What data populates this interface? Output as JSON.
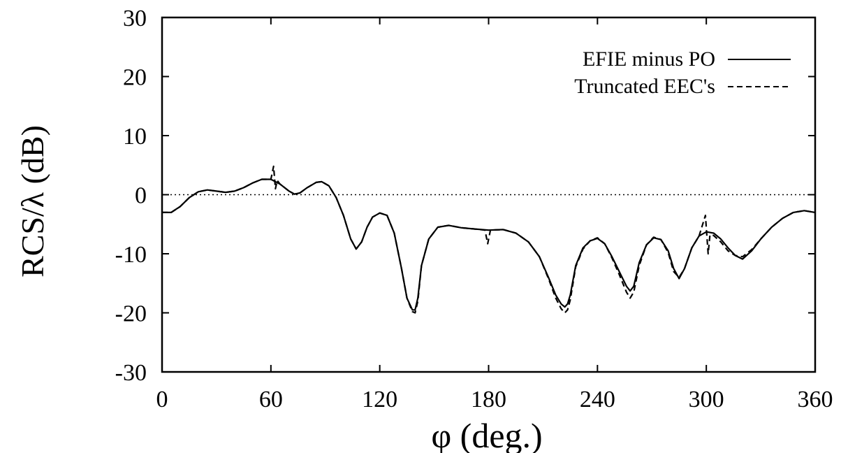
{
  "chart_data": {
    "type": "line",
    "xlabel": "φ (deg.)",
    "ylabel": "RCS/λ (dB)",
    "xlim": [
      0,
      360
    ],
    "ylim": [
      -30,
      30
    ],
    "xticks": [
      0,
      60,
      120,
      180,
      240,
      300,
      360
    ],
    "yticks": [
      30,
      20,
      10,
      0,
      -10,
      -20,
      -30
    ],
    "grid": false,
    "legend_position": "top-right",
    "reference_line": {
      "y": 0,
      "style": "dotted"
    },
    "series": [
      {
        "name": "EFIE minus PO",
        "style": "solid",
        "x": [
          0,
          5,
          10,
          15,
          20,
          25,
          30,
          35,
          40,
          45,
          50,
          55,
          60,
          65,
          70,
          73,
          76,
          80,
          85,
          88,
          92,
          96,
          100,
          104,
          107,
          110,
          113,
          116,
          120,
          124,
          128,
          132,
          135,
          138,
          139.5,
          141,
          143,
          147,
          152,
          158,
          165,
          172,
          180,
          188,
          195,
          202,
          208,
          213,
          217,
          220,
          222,
          223.5,
          225,
          228,
          232,
          236,
          240,
          244,
          248,
          252,
          256,
          258,
          260,
          263,
          267,
          271,
          275,
          279,
          282,
          285,
          288,
          292,
          296,
          300,
          304,
          308,
          312,
          316,
          320,
          325,
          330,
          336,
          342,
          348,
          354,
          360
        ],
        "y": [
          -3.0,
          -3.0,
          -2.0,
          -0.5,
          0.5,
          0.8,
          0.6,
          0.4,
          0.6,
          1.2,
          2.0,
          2.6,
          2.6,
          1.8,
          0.6,
          0.1,
          0.3,
          1.2,
          2.1,
          2.2,
          1.5,
          -0.5,
          -3.5,
          -7.5,
          -9.2,
          -8.0,
          -5.5,
          -3.8,
          -3.1,
          -3.5,
          -6.5,
          -12.5,
          -17.5,
          -19.5,
          -19.5,
          -17.5,
          -12.0,
          -7.5,
          -5.5,
          -5.2,
          -5.6,
          -5.8,
          -6.0,
          -5.9,
          -6.5,
          -8.0,
          -10.5,
          -14.0,
          -17.0,
          -18.5,
          -19.0,
          -18.5,
          -17.0,
          -12.0,
          -9.0,
          -7.8,
          -7.4,
          -8.3,
          -10.5,
          -13.0,
          -15.5,
          -16.3,
          -15.5,
          -11.5,
          -8.5,
          -7.3,
          -7.6,
          -9.5,
          -12.5,
          -14.2,
          -12.5,
          -9.0,
          -7.0,
          -6.3,
          -6.5,
          -7.5,
          -9.0,
          -10.3,
          -10.9,
          -9.5,
          -7.5,
          -5.5,
          -4.0,
          -3.0,
          -2.7,
          -3.0
        ]
      },
      {
        "name": "Truncated EEC's",
        "style": "dashed",
        "x": [
          0,
          5,
          10,
          15,
          20,
          25,
          30,
          35,
          40,
          45,
          50,
          55,
          60,
          61.5,
          62.5,
          63.5,
          65,
          70,
          73,
          76,
          80,
          85,
          88,
          92,
          96,
          100,
          104,
          107,
          110,
          113,
          116,
          120,
          124,
          128,
          132,
          135,
          138,
          139.5,
          141,
          143,
          147,
          152,
          158,
          165,
          172,
          178,
          179.5,
          181,
          188,
          195,
          202,
          208,
          213,
          217,
          220,
          222,
          223.5,
          225,
          228,
          232,
          236,
          240,
          244,
          248,
          252,
          256,
          258,
          260,
          263,
          267,
          271,
          275,
          279,
          282,
          285,
          288,
          292,
          296,
          299.5,
          301,
          302,
          303,
          304,
          308,
          312,
          316,
          320,
          325,
          330,
          336,
          342,
          348,
          354,
          360
        ],
        "y": [
          -3.0,
          -3.0,
          -2.0,
          -0.5,
          0.5,
          0.8,
          0.6,
          0.4,
          0.6,
          1.2,
          2.0,
          2.6,
          2.6,
          4.8,
          1.0,
          2.4,
          1.8,
          0.6,
          0.1,
          0.3,
          1.2,
          2.1,
          2.2,
          1.5,
          -0.5,
          -3.5,
          -7.5,
          -9.2,
          -8.0,
          -5.5,
          -3.8,
          -3.1,
          -3.5,
          -6.5,
          -12.5,
          -17.5,
          -19.8,
          -20.0,
          -18.0,
          -12.0,
          -7.5,
          -5.5,
          -5.2,
          -5.6,
          -5.8,
          -6.0,
          -8.3,
          -6.0,
          -5.9,
          -6.5,
          -8.0,
          -10.5,
          -14.2,
          -17.5,
          -19.3,
          -20.0,
          -19.5,
          -17.8,
          -12.2,
          -9.2,
          -7.8,
          -7.3,
          -8.3,
          -10.7,
          -13.5,
          -16.5,
          -17.5,
          -16.5,
          -12.0,
          -8.5,
          -7.2,
          -7.6,
          -9.8,
          -13.0,
          -14.0,
          -12.5,
          -9.0,
          -7.0,
          -3.5,
          -10.0,
          -6.8,
          -6.8,
          -6.9,
          -8.0,
          -9.5,
          -10.3,
          -10.5,
          -9.3,
          -7.5,
          -5.5,
          -4.0,
          -3.0,
          -2.7,
          -3.0
        ]
      }
    ]
  }
}
